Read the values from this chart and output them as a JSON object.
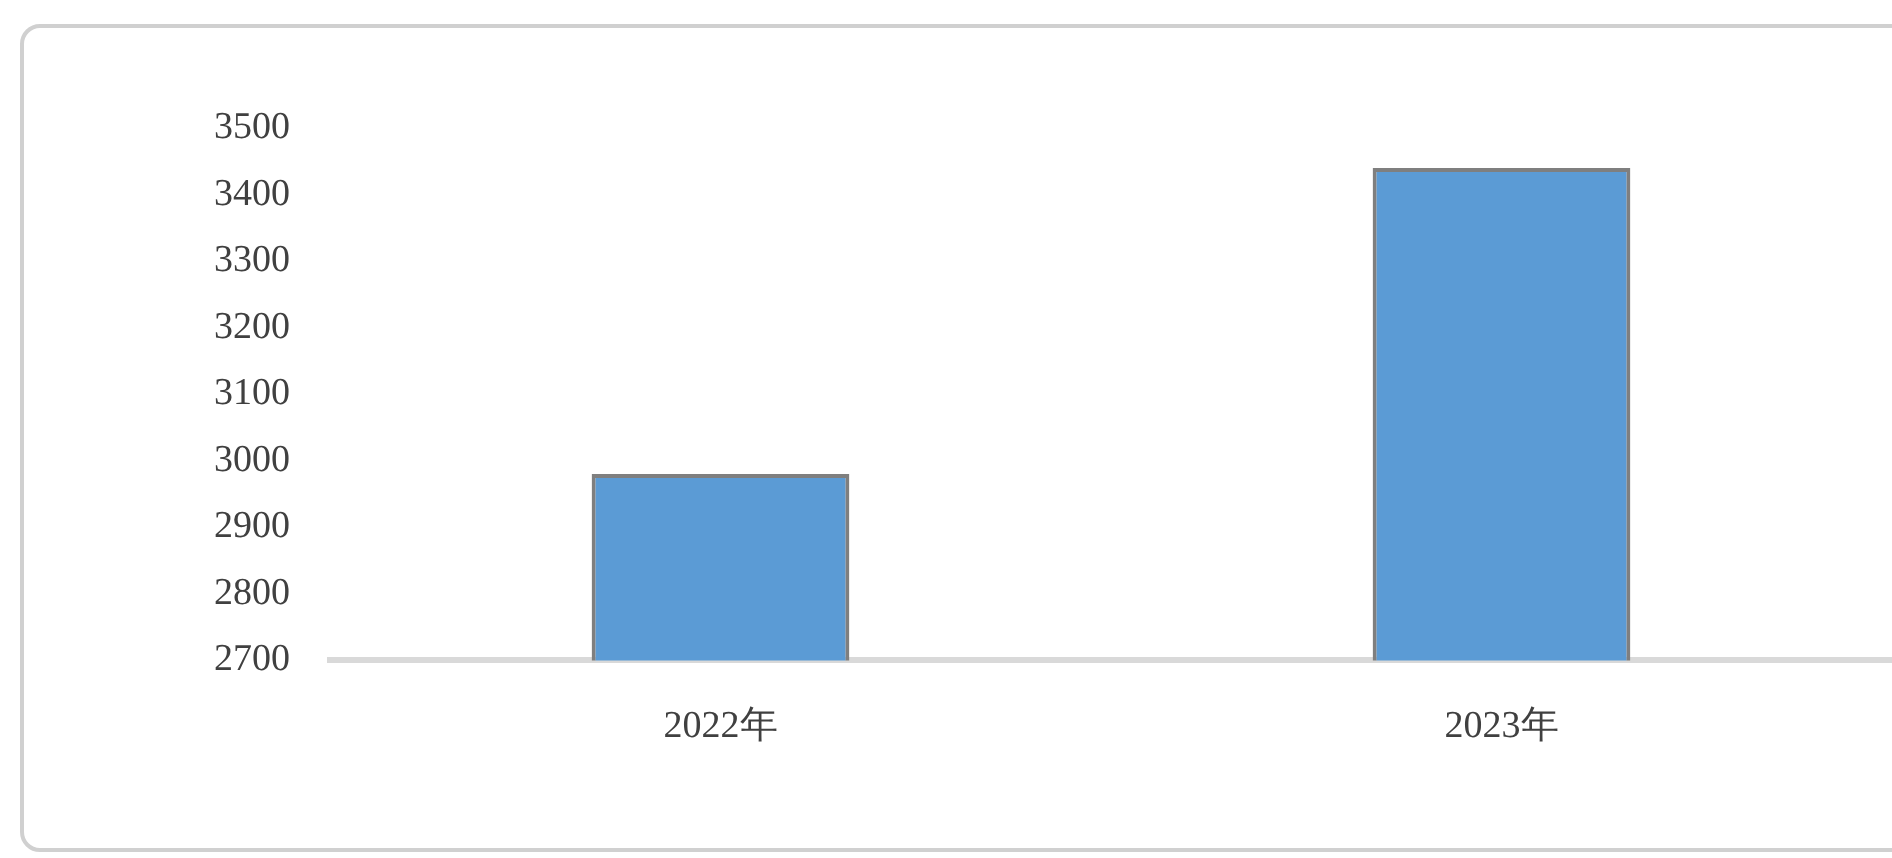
{
  "chart_data": {
    "type": "bar",
    "categories": [
      "2022年",
      "2023年"
    ],
    "series": [
      {
        "color": "#5b9bd5",
        "values": [
          2980,
          3440
        ]
      }
    ],
    "ylim": [
      2700,
      3500
    ],
    "yticks": [
      2700,
      2800,
      2900,
      3000,
      3100,
      3200,
      3300,
      3400,
      3500
    ],
    "grid": false,
    "legend": false
  }
}
